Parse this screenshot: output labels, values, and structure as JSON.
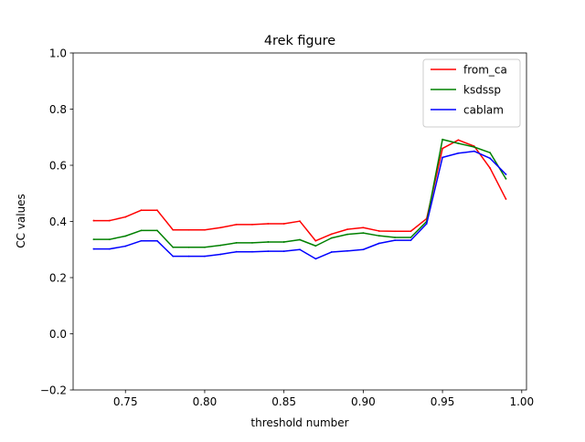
{
  "chart_data": {
    "type": "line",
    "title": "4rek figure",
    "xlabel": "threshold number",
    "ylabel": "CC values",
    "xlim": [
      0.717,
      1.003
    ],
    "ylim": [
      -0.2,
      1.0
    ],
    "xticks": [
      0.75,
      0.8,
      0.85,
      0.9,
      0.95,
      1.0
    ],
    "xtick_labels": [
      "0.75",
      "0.80",
      "0.85",
      "0.90",
      "0.95",
      "1.00"
    ],
    "yticks": [
      -0.2,
      0.0,
      0.2,
      0.4,
      0.6,
      0.8,
      1.0
    ],
    "ytick_labels": [
      "−0.2",
      "0.0",
      "0.2",
      "0.4",
      "0.6",
      "0.8",
      "1.0"
    ],
    "grid": false,
    "legend_position": "top-right",
    "x": [
      0.73,
      0.74,
      0.75,
      0.76,
      0.77,
      0.78,
      0.79,
      0.8,
      0.81,
      0.82,
      0.83,
      0.84,
      0.85,
      0.86,
      0.87,
      0.88,
      0.89,
      0.9,
      0.91,
      0.92,
      0.93,
      0.94,
      0.95,
      0.96,
      0.97,
      0.98,
      0.99
    ],
    "series": [
      {
        "name": "from_ca",
        "color": "#ff0000",
        "values": [
          0.403,
          0.403,
          0.416,
          0.44,
          0.44,
          0.37,
          0.37,
          0.37,
          0.378,
          0.389,
          0.389,
          0.392,
          0.392,
          0.401,
          0.331,
          0.355,
          0.372,
          0.378,
          0.366,
          0.365,
          0.365,
          0.41,
          0.66,
          0.69,
          0.668,
          0.59,
          0.48
        ]
      },
      {
        "name": "ksdssp",
        "color": "#008000",
        "values": [
          0.336,
          0.336,
          0.348,
          0.368,
          0.368,
          0.308,
          0.308,
          0.308,
          0.315,
          0.324,
          0.324,
          0.327,
          0.327,
          0.335,
          0.313,
          0.341,
          0.354,
          0.359,
          0.349,
          0.343,
          0.343,
          0.4,
          0.692,
          0.678,
          0.665,
          0.645,
          0.552
        ]
      },
      {
        "name": "cablam",
        "color": "#0000ff",
        "values": [
          0.302,
          0.302,
          0.312,
          0.331,
          0.331,
          0.276,
          0.276,
          0.276,
          0.283,
          0.292,
          0.292,
          0.294,
          0.294,
          0.3,
          0.267,
          0.291,
          0.295,
          0.3,
          0.322,
          0.333,
          0.333,
          0.392,
          0.628,
          0.643,
          0.65,
          0.625,
          0.568
        ]
      }
    ]
  }
}
